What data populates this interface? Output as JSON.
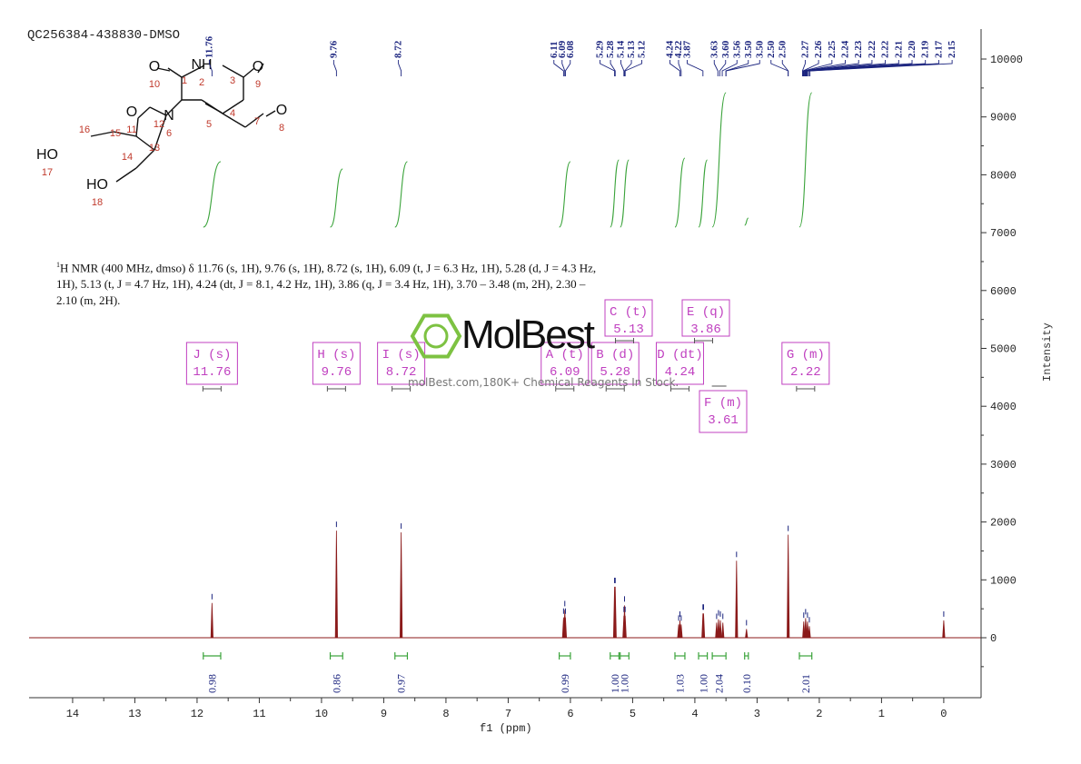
{
  "sample_title": "QC256384-438830-DMSO",
  "nmr_description": {
    "nucleus": "1",
    "text": "H NMR (400 MHz, dmso) δ 11.76 (s, 1H), 9.76 (s, 1H), 8.72 (s, 1H), 6.09 (t, J = 6.3 Hz, 1H), 5.28 (d, J = 4.3 Hz, 1H), 5.13 (t, J = 4.7 Hz, 1H), 4.24 (dt, J = 8.1, 4.2 Hz, 1H), 3.86 (q, J = 3.4 Hz, 1H), 3.70 – 3.48 (m, 2H), 2.30 – 2.10 (m, 2H)."
  },
  "watermark": {
    "brand": "MolBest",
    "tagline": "molBest.com,180K+ Chemical Reagents In Stock.",
    "color": "#7dc242"
  },
  "colors": {
    "spectrum": "#8b1a1a",
    "peak_labels": "#1a237e",
    "integral": "#3aa33a",
    "multiplet_box": "#c040c0"
  },
  "chart_data": {
    "type": "line",
    "xlabel": "f1 (ppm)",
    "ylabel": "Intensity",
    "xlim": [
      14.7,
      -0.6
    ],
    "ylim": [
      -1000,
      10500
    ],
    "x_ticks": [
      14,
      13,
      12,
      11,
      10,
      9,
      8,
      7,
      6,
      5,
      4,
      3,
      2,
      1,
      0
    ],
    "y_ticks": [
      0,
      1000,
      2000,
      3000,
      4000,
      5000,
      6000,
      7000,
      8000,
      9000,
      10000
    ],
    "peak_labels": [
      "11.76",
      "9.76",
      "8.72",
      "6.11",
      "6.09",
      "6.08",
      "5.29",
      "5.28",
      "5.14",
      "5.13",
      "5.12",
      "4.24",
      "4.22",
      "3.87",
      "3.63",
      "3.60",
      "3.56",
      "3.50",
      "3.50",
      "2.50",
      "2.50",
      "2.27",
      "2.26",
      "2.25",
      "2.24",
      "2.23",
      "2.22",
      "2.22",
      "2.21",
      "2.20",
      "2.19",
      "2.17",
      "2.15"
    ],
    "peaks": [
      {
        "ppm": 11.76,
        "height": 600
      },
      {
        "ppm": 9.76,
        "height": 1850
      },
      {
        "ppm": 8.72,
        "height": 1820
      },
      {
        "ppm": 6.11,
        "height": 350
      },
      {
        "ppm": 6.09,
        "height": 480
      },
      {
        "ppm": 6.08,
        "height": 350
      },
      {
        "ppm": 5.29,
        "height": 880
      },
      {
        "ppm": 5.28,
        "height": 880
      },
      {
        "ppm": 5.14,
        "height": 380
      },
      {
        "ppm": 5.13,
        "height": 560
      },
      {
        "ppm": 5.12,
        "height": 380
      },
      {
        "ppm": 4.26,
        "height": 230
      },
      {
        "ppm": 4.24,
        "height": 300
      },
      {
        "ppm": 4.22,
        "height": 230
      },
      {
        "ppm": 3.87,
        "height": 420
      },
      {
        "ppm": 3.86,
        "height": 420
      },
      {
        "ppm": 3.65,
        "height": 260
      },
      {
        "ppm": 3.62,
        "height": 320
      },
      {
        "ppm": 3.59,
        "height": 300
      },
      {
        "ppm": 3.55,
        "height": 260
      },
      {
        "ppm": 3.33,
        "height": 1330
      },
      {
        "ppm": 3.17,
        "height": 150
      },
      {
        "ppm": 2.5,
        "height": 1780
      },
      {
        "ppm": 2.25,
        "height": 280
      },
      {
        "ppm": 2.22,
        "height": 340
      },
      {
        "ppm": 2.19,
        "height": 280
      },
      {
        "ppm": 2.16,
        "height": 200
      },
      {
        "ppm": 0.0,
        "height": 300
      }
    ],
    "integrals": [
      {
        "center": 11.76,
        "from": 11.9,
        "to": 11.62,
        "value": "0.98"
      },
      {
        "center": 9.76,
        "from": 9.86,
        "to": 9.66,
        "value": "0.86"
      },
      {
        "center": 8.72,
        "from": 8.82,
        "to": 8.62,
        "value": "0.97"
      },
      {
        "center": 6.09,
        "from": 6.18,
        "to": 6.0,
        "value": "0.99"
      },
      {
        "center": 5.28,
        "from": 5.36,
        "to": 5.22,
        "value": "1.00"
      },
      {
        "center": 5.13,
        "from": 5.2,
        "to": 5.06,
        "value": "1.00"
      },
      {
        "center": 4.24,
        "from": 4.32,
        "to": 4.16,
        "value": "1.03"
      },
      {
        "center": 3.86,
        "from": 3.94,
        "to": 3.8,
        "value": "1.00"
      },
      {
        "center": 3.61,
        "from": 3.72,
        "to": 3.5,
        "value": "2.04"
      },
      {
        "center": 3.17,
        "from": 3.2,
        "to": 3.14,
        "value": "0.10"
      },
      {
        "center": 2.22,
        "from": 2.32,
        "to": 2.12,
        "value": "2.01"
      }
    ],
    "multiplets": [
      {
        "letter": "J",
        "mult": "s",
        "shift": "11.76",
        "row": 1
      },
      {
        "letter": "H",
        "mult": "s",
        "shift": "9.76",
        "row": 1
      },
      {
        "letter": "I",
        "mult": "s",
        "shift": "8.72",
        "row": 1
      },
      {
        "letter": "A",
        "mult": "t",
        "shift": "6.09",
        "row": 1
      },
      {
        "letter": "B",
        "mult": "d",
        "shift": "5.28",
        "row": 1
      },
      {
        "letter": "C",
        "mult": "t",
        "shift": "5.13",
        "row": 0
      },
      {
        "letter": "D",
        "mult": "dt",
        "shift": "4.24",
        "row": 1
      },
      {
        "letter": "E",
        "mult": "q",
        "shift": "3.86",
        "row": 0
      },
      {
        "letter": "F",
        "mult": "m",
        "shift": "3.61",
        "row": 2
      },
      {
        "letter": "G",
        "mult": "m",
        "shift": "2.22",
        "row": 1
      }
    ]
  },
  "molecule": {
    "atoms": [
      {
        "label": "O",
        "num": "10"
      },
      {
        "label": "NH",
        "num": "2"
      },
      {
        "label": "O",
        "num": "9"
      },
      {
        "label": "N",
        "num": "6"
      },
      {
        "label": "O",
        "num": "11"
      },
      {
        "label": "O",
        "num": "8"
      },
      {
        "label": "HO",
        "num": "17"
      },
      {
        "label": "HO",
        "num": "18"
      }
    ],
    "carbons": [
      "1",
      "3",
      "4",
      "5",
      "7",
      "12",
      "13",
      "14",
      "15",
      "16"
    ]
  }
}
